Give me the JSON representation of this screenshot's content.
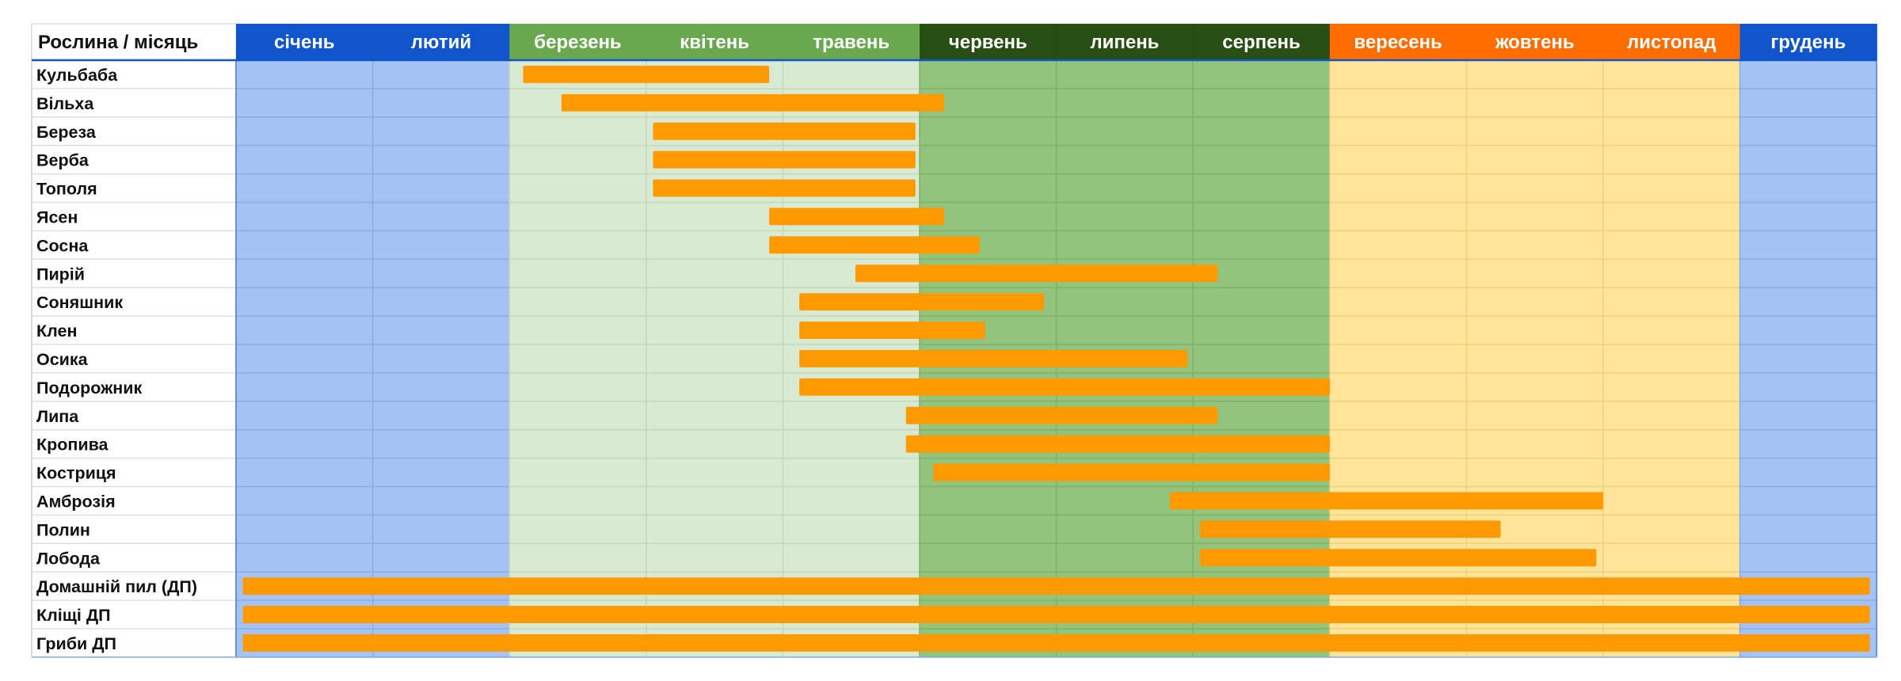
{
  "chart_data": {
    "type": "gantt",
    "header_label": "Рослина / місяць",
    "months": [
      "січень",
      "лютий",
      "березень",
      "квітень",
      "травень",
      "червень",
      "липень",
      "серпень",
      "вересень",
      "жовтень",
      "листопад",
      "грудень"
    ],
    "seasons": [
      {
        "months": [
          0,
          1,
          11
        ],
        "header_color": "#1155cc",
        "fill_color": "#a4c2f4",
        "line_color": "#8aacdf"
      },
      {
        "months": [
          2,
          3,
          4
        ],
        "header_color": "#6aa84f",
        "fill_color": "#d9ead3",
        "line_color": "#c3d8bb"
      },
      {
        "months": [
          5,
          6,
          7
        ],
        "header_color": "#274e13",
        "fill_color": "#93c47d",
        "line_color": "#7fb068"
      },
      {
        "months": [
          8,
          9,
          10
        ],
        "header_color": "#ff6d01",
        "fill_color": "#ffe599",
        "line_color": "#ecd07c"
      }
    ],
    "bar_color": "#ff9900",
    "plants": [
      "Кульбаба",
      "Вільха",
      "Береза",
      "Верба",
      "Тополя",
      "Ясен",
      "Сосна",
      "Пирій",
      "Соняшник",
      "Клен",
      "Осика",
      "Подорожник",
      "Липа",
      "Кропива",
      "Костриця",
      "Амброзія",
      "Полин",
      "Лобода",
      "Домашній пил (ДП)",
      "Кліщі ДП",
      "Гриби ДП"
    ],
    "periods": [
      {
        "start": 2.1,
        "end": 3.9
      },
      {
        "start": 2.38,
        "end": 5.18
      },
      {
        "start": 3.05,
        "end": 4.97
      },
      {
        "start": 3.05,
        "end": 4.97
      },
      {
        "start": 3.05,
        "end": 4.97
      },
      {
        "start": 3.9,
        "end": 5.18
      },
      {
        "start": 3.9,
        "end": 5.44
      },
      {
        "start": 4.53,
        "end": 7.18
      },
      {
        "start": 4.12,
        "end": 5.91
      },
      {
        "start": 4.12,
        "end": 5.48
      },
      {
        "start": 4.12,
        "end": 6.96
      },
      {
        "start": 4.12,
        "end": 8.0
      },
      {
        "start": 4.9,
        "end": 7.18
      },
      {
        "start": 4.9,
        "end": 8.0
      },
      {
        "start": 5.1,
        "end": 8.0
      },
      {
        "start": 6.83,
        "end": 10.0
      },
      {
        "start": 7.05,
        "end": 9.25
      },
      {
        "start": 7.05,
        "end": 9.95
      },
      {
        "start": 0.05,
        "end": 11.95
      },
      {
        "start": 0.05,
        "end": 11.95
      },
      {
        "start": 0.05,
        "end": 11.95
      }
    ]
  }
}
